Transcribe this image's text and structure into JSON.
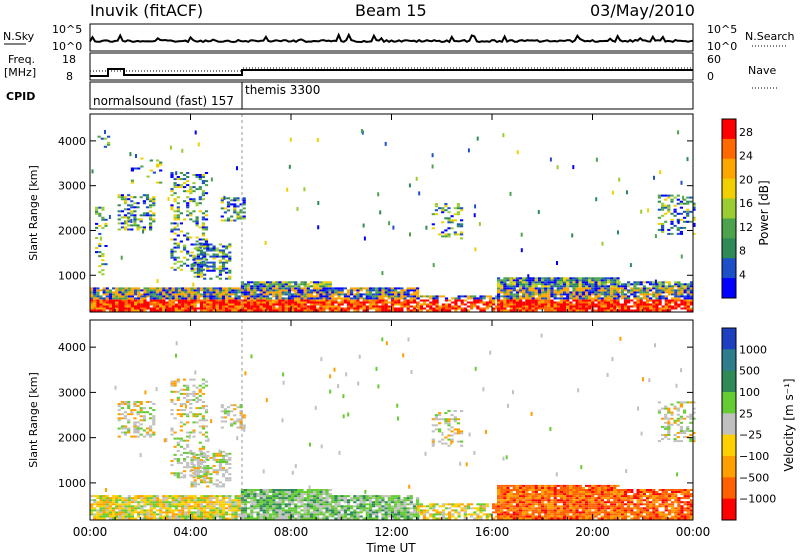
{
  "header": {
    "station": "Inuvik (fitACF)",
    "beam": "Beam 15",
    "date": "03/May/2010"
  },
  "strip_nsky": {
    "left_label": "N.Sky",
    "left_ticks": [
      "10^5",
      "10^0"
    ],
    "right_label": "N.Search",
    "right_ticks": [
      "10^5",
      "10^0"
    ]
  },
  "strip_freq": {
    "left_label_1": "Freq.",
    "left_label_2": "[MHz]",
    "left_ticks": [
      "18",
      "8"
    ],
    "right_label": "Nave",
    "right_ticks": [
      "60",
      "0"
    ]
  },
  "strip_cpid": {
    "label": "CPID",
    "modes": [
      "normalsound (fast) 157",
      "themis 3300"
    ]
  },
  "chart_data": [
    {
      "type": "heatmap",
      "title": "",
      "xlabel": "",
      "ylabel": "Slant Range [km]",
      "x_range_hours": [
        0,
        24
      ],
      "ylim": [
        180,
        4600
      ],
      "yticks": [
        1000,
        2000,
        3000,
        4000
      ],
      "colorbar_label": "Power [dB]",
      "colorbar_ticks": [
        "4",
        "8",
        "12",
        "16",
        "20",
        "24",
        "28"
      ],
      "colorbar_range": [
        0,
        30
      ],
      "colorbar_colors": [
        "#0000ff",
        "#1d4fc8",
        "#2e8b57",
        "#4da34d",
        "#9acd32",
        "#f0d000",
        "#ffa500",
        "#ff6a00",
        "#ff0000"
      ],
      "regions": [
        {
          "x0": 0.0,
          "x1": 6.0,
          "y0": 190,
          "y1": 700,
          "density": 0.95
        },
        {
          "x0": 6.0,
          "x1": 9.6,
          "y0": 190,
          "y1": 850,
          "density": 0.95
        },
        {
          "x0": 9.6,
          "x1": 13.0,
          "y0": 190,
          "y1": 700,
          "density": 0.9
        },
        {
          "x0": 13.0,
          "x1": 16.2,
          "y0": 190,
          "y1": 550,
          "density": 0.7
        },
        {
          "x0": 16.2,
          "x1": 21.0,
          "y0": 190,
          "y1": 950,
          "density": 0.95
        },
        {
          "x0": 21.0,
          "x1": 24.0,
          "y0": 190,
          "y1": 850,
          "density": 0.85
        },
        {
          "x0": 1.1,
          "x1": 2.6,
          "y0": 2000,
          "y1": 2800,
          "density": 0.45
        },
        {
          "x0": 1.5,
          "x1": 2.8,
          "y0": 3000,
          "y1": 3600,
          "density": 0.2
        },
        {
          "x0": 3.2,
          "x1": 4.6,
          "y0": 1100,
          "y1": 3300,
          "density": 0.3
        },
        {
          "x0": 4.0,
          "x1": 5.6,
          "y0": 900,
          "y1": 1700,
          "density": 0.55
        },
        {
          "x0": 5.2,
          "x1": 6.2,
          "y0": 2200,
          "y1": 2700,
          "density": 0.45
        },
        {
          "x0": 0.2,
          "x1": 0.7,
          "y0": 1000,
          "y1": 2500,
          "density": 0.3
        },
        {
          "x0": 0.3,
          "x1": 0.7,
          "y0": 3800,
          "y1": 4100,
          "density": 0.4
        },
        {
          "x0": 13.6,
          "x1": 14.8,
          "y0": 1800,
          "y1": 2600,
          "density": 0.35
        },
        {
          "x0": 22.6,
          "x1": 24.0,
          "y0": 1900,
          "y1": 2800,
          "density": 0.4
        }
      ]
    },
    {
      "type": "heatmap",
      "title": "",
      "xlabel": "Time UT",
      "ylabel": "Slant Range [km]",
      "x_range_hours": [
        0,
        24
      ],
      "xticks": [
        "00:00",
        "04:00",
        "08:00",
        "12:00",
        "16:00",
        "20:00",
        "00:00"
      ],
      "ylim": [
        180,
        4600
      ],
      "yticks": [
        1000,
        2000,
        3000,
        4000
      ],
      "colorbar_label": "Velocity [m s⁻¹]",
      "colorbar_ticks": [
        "1000",
        "500",
        "100",
        "25",
        "−25",
        "−100",
        "−500",
        "−1000"
      ],
      "colorbar_colors": [
        "#1e3fbf",
        "#2e7d8c",
        "#2e8b57",
        "#66cc33",
        "#c0c0c0",
        "#ffd000",
        "#ffa000",
        "#ff6000",
        "#ff0000"
      ],
      "regions": [
        {
          "x0": 0.0,
          "x1": 6.0,
          "y0": 190,
          "y1": 700,
          "density": 0.9
        },
        {
          "x0": 6.0,
          "x1": 9.6,
          "y0": 190,
          "y1": 850,
          "density": 0.9
        },
        {
          "x0": 9.6,
          "x1": 13.0,
          "y0": 190,
          "y1": 700,
          "density": 0.85
        },
        {
          "x0": 13.0,
          "x1": 16.2,
          "y0": 190,
          "y1": 550,
          "density": 0.6
        },
        {
          "x0": 16.2,
          "x1": 21.0,
          "y0": 190,
          "y1": 950,
          "density": 0.95
        },
        {
          "x0": 21.0,
          "x1": 24.0,
          "y0": 190,
          "y1": 850,
          "density": 0.85
        },
        {
          "x0": 1.1,
          "x1": 2.6,
          "y0": 2000,
          "y1": 2800,
          "density": 0.45
        },
        {
          "x0": 3.2,
          "x1": 4.6,
          "y0": 1100,
          "y1": 3300,
          "density": 0.3
        },
        {
          "x0": 4.0,
          "x1": 5.6,
          "y0": 900,
          "y1": 1700,
          "density": 0.55
        },
        {
          "x0": 5.2,
          "x1": 6.2,
          "y0": 2200,
          "y1": 2700,
          "density": 0.45
        },
        {
          "x0": 13.6,
          "x1": 14.8,
          "y0": 1800,
          "y1": 2600,
          "density": 0.35
        },
        {
          "x0": 22.6,
          "x1": 24.0,
          "y0": 1900,
          "y1": 2800,
          "density": 0.4
        }
      ]
    }
  ]
}
